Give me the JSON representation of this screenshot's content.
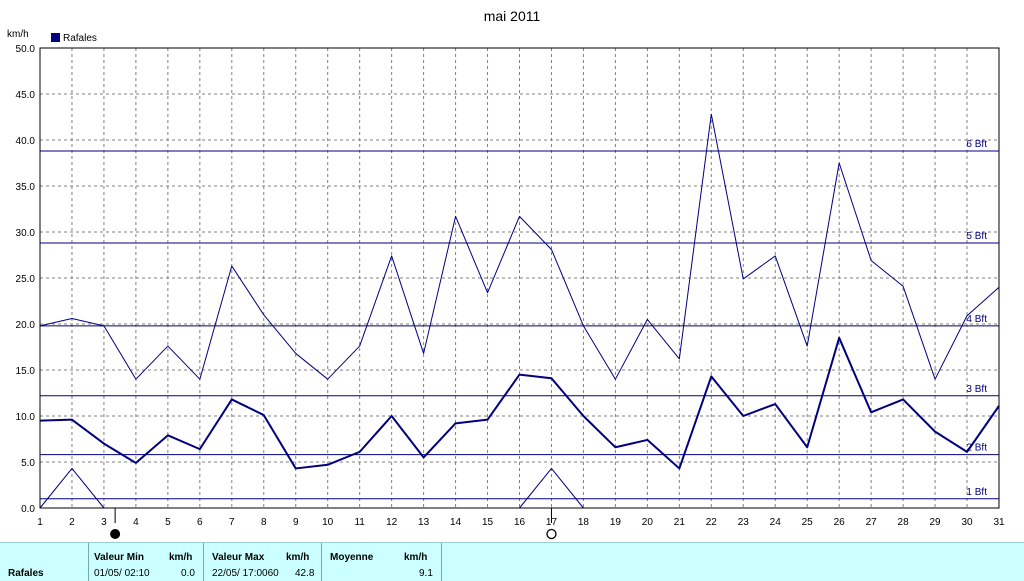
{
  "chart_data": {
    "type": "line",
    "title": "mai 2011",
    "ylabel": "km/h",
    "legend": {
      "label": "Rafales",
      "color": "#000080",
      "position": "top-left"
    },
    "x": [
      1,
      2,
      3,
      4,
      5,
      6,
      7,
      8,
      9,
      10,
      11,
      12,
      13,
      14,
      15,
      16,
      17,
      18,
      19,
      20,
      21,
      22,
      23,
      24,
      25,
      26,
      27,
      28,
      29,
      30,
      31
    ],
    "ylim": [
      0,
      50
    ],
    "yticks": [
      "0.0",
      "5.0",
      "10.0",
      "15.0",
      "20.0",
      "25.0",
      "30.0",
      "35.0",
      "40.0",
      "45.0",
      "50.0"
    ],
    "grid": true,
    "series": [
      {
        "role": "max",
        "color": "#000080",
        "stroke": 1,
        "values": [
          19.8,
          20.6,
          19.8,
          14.0,
          17.6,
          14.0,
          26.3,
          21.0,
          16.8,
          14.0,
          17.6,
          27.4,
          16.8,
          31.7,
          23.4,
          31.7,
          28.1,
          19.8,
          14.0,
          20.5,
          16.2,
          42.8,
          24.9,
          27.4,
          17.6,
          37.5,
          26.9,
          24.1,
          14.0,
          20.9,
          24.0
        ]
      },
      {
        "role": "average",
        "color": "#000080",
        "stroke": 2,
        "values": [
          9.5,
          9.6,
          7.0,
          4.9,
          7.9,
          6.4,
          11.8,
          10.1,
          4.3,
          4.7,
          6.1,
          10.0,
          5.5,
          9.2,
          9.6,
          14.5,
          14.1,
          10.0,
          6.6,
          7.4,
          4.3,
          14.3,
          10.0,
          11.3,
          6.6,
          18.5,
          10.4,
          11.8,
          8.3,
          6.1,
          11.1
        ]
      },
      {
        "role": "min",
        "color": "#000080",
        "stroke": 1,
        "values": [
          0.0,
          4.3,
          0.0,
          null,
          null,
          null,
          null,
          null,
          null,
          null,
          null,
          null,
          null,
          null,
          null,
          0.0,
          4.3,
          0.0,
          null,
          null,
          null,
          null,
          null,
          null,
          null,
          null,
          null,
          null,
          null,
          null,
          null
        ]
      }
    ],
    "beaufort": [
      {
        "label": "1 Bft",
        "value": 1.0
      },
      {
        "label": "2 Bft",
        "value": 5.8
      },
      {
        "label": "3 Bft",
        "value": 12.2
      },
      {
        "label": "4 Bft",
        "value": 19.8
      },
      {
        "label": "5 Bft",
        "value": 28.8
      },
      {
        "label": "6 Bft",
        "value": 38.8
      }
    ],
    "moon": [
      {
        "phase": "new",
        "x": 3.35
      },
      {
        "phase": "full",
        "x": 17.0
      }
    ]
  },
  "stats": {
    "row_label": "Rafales",
    "min_header": "Valeur Min",
    "min_unit": "km/h",
    "min_date": "01/05/  02:10",
    "min_value": "0.0",
    "max_header": "Valeur Max",
    "max_unit": "km/h",
    "max_date": "22/05/  17:0060",
    "max_value": "42.8",
    "avg_header": "Moyenne",
    "avg_unit": "km/h",
    "avg_value": "9.1"
  }
}
